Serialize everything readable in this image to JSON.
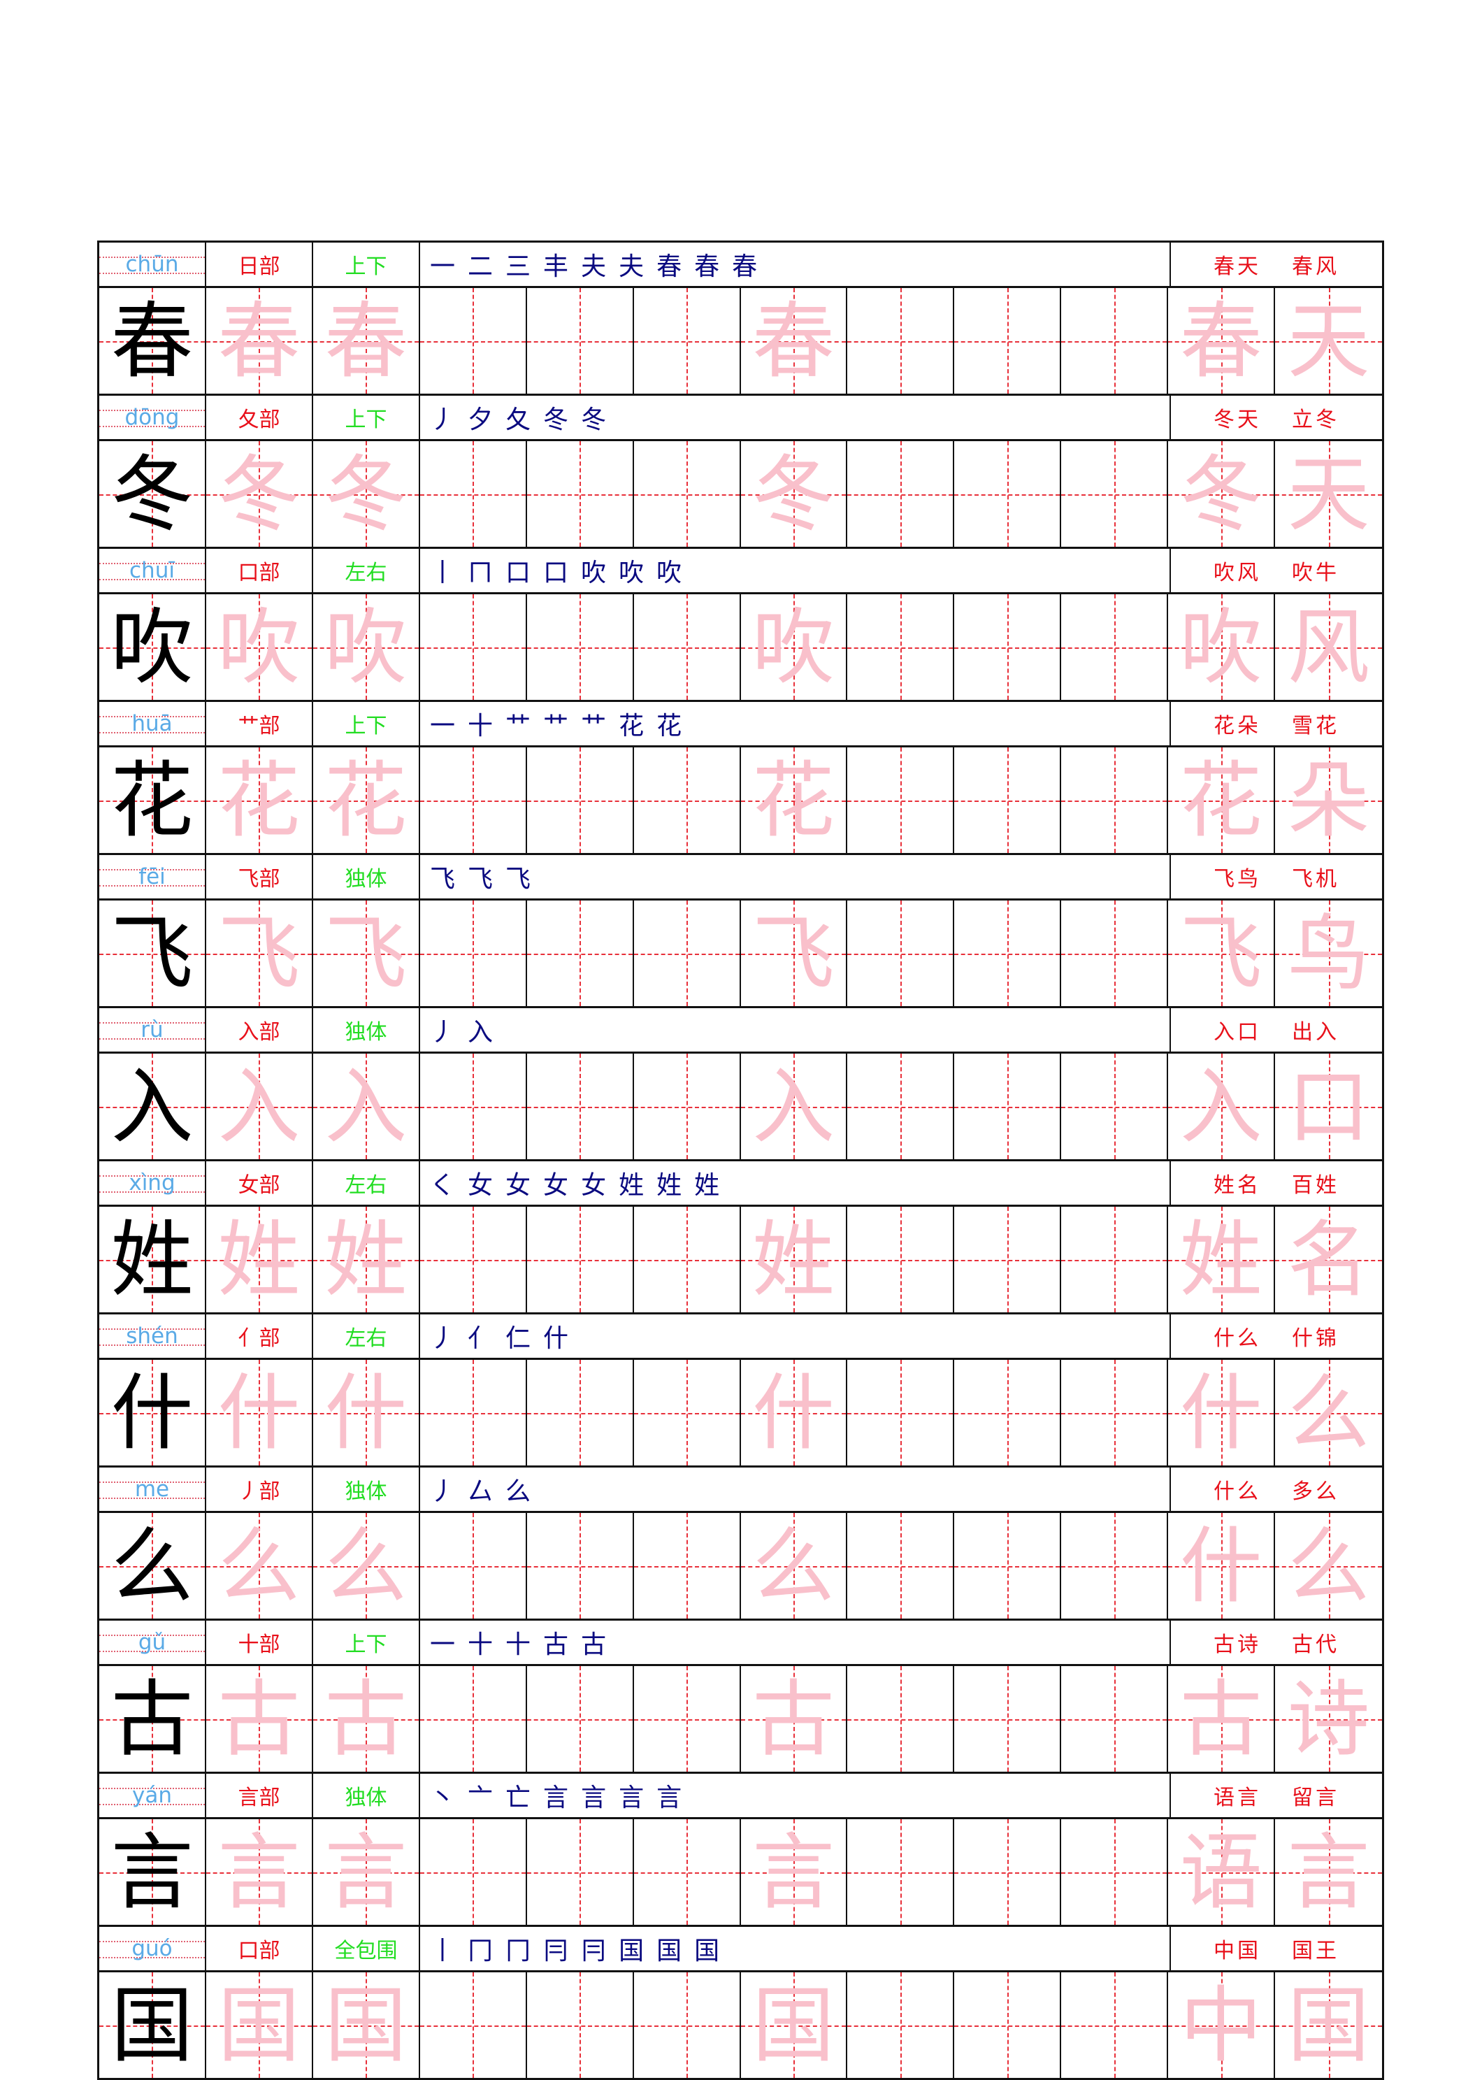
{
  "colors": {
    "pinyin": "#5aaae6",
    "radical": "#e8101a",
    "structure": "#22dd22",
    "strokes": "#0a0a80",
    "trace": "#f9c0cb",
    "grid": "#e8303a"
  },
  "rows": [
    {
      "pinyin": "chūn",
      "char": "春",
      "radical": "日部",
      "structure": "上下",
      "strokes": [
        "一",
        "二",
        "三",
        "丰",
        "夫",
        "夫",
        "春",
        "春",
        "春"
      ],
      "words": [
        "春天",
        "春风"
      ],
      "trace_word": [
        "春",
        "天"
      ]
    },
    {
      "pinyin": "dōng",
      "char": "冬",
      "radical": "夂部",
      "structure": "上下",
      "strokes": [
        "丿",
        "夕",
        "夂",
        "冬",
        "冬"
      ],
      "words": [
        "冬天",
        "立冬"
      ],
      "trace_word": [
        "冬",
        "天"
      ]
    },
    {
      "pinyin": "chuī",
      "char": "吹",
      "radical": "口部",
      "structure": "左右",
      "strokes": [
        "丨",
        "ㄇ",
        "口",
        "口",
        "吹",
        "吹",
        "吹"
      ],
      "words": [
        "吹风",
        "吹牛"
      ],
      "trace_word": [
        "吹",
        "风"
      ]
    },
    {
      "pinyin": "huā",
      "char": "花",
      "radical": "艹部",
      "structure": "上下",
      "strokes": [
        "一",
        "十",
        "艹",
        "艹",
        "艹",
        "花",
        "花"
      ],
      "words": [
        "花朵",
        "雪花"
      ],
      "trace_word": [
        "花",
        "朵"
      ]
    },
    {
      "pinyin": "fēi",
      "char": "飞",
      "radical": "飞部",
      "structure": "独体",
      "strokes": [
        "飞",
        "飞",
        "飞"
      ],
      "words": [
        "飞鸟",
        "飞机"
      ],
      "trace_word": [
        "飞",
        "鸟"
      ]
    },
    {
      "pinyin": "rù",
      "char": "入",
      "radical": "入部",
      "structure": "独体",
      "strokes": [
        "丿",
        "入"
      ],
      "words": [
        "入口",
        "出入"
      ],
      "trace_word": [
        "入",
        "口"
      ]
    },
    {
      "pinyin": "xìng",
      "char": "姓",
      "radical": "女部",
      "structure": "左右",
      "strokes": [
        "く",
        "女",
        "女",
        "女",
        "女",
        "姓",
        "姓",
        "姓"
      ],
      "words": [
        "姓名",
        "百姓"
      ],
      "trace_word": [
        "姓",
        "名"
      ]
    },
    {
      "pinyin": "shén",
      "char": "什",
      "radical": "亻部",
      "structure": "左右",
      "strokes": [
        "丿",
        "亻",
        "仁",
        "什"
      ],
      "words": [
        "什么",
        "什锦"
      ],
      "trace_word": [
        "什",
        "么"
      ]
    },
    {
      "pinyin": "me",
      "char": "么",
      "radical": "丿部",
      "structure": "独体",
      "strokes": [
        "丿",
        "厶",
        "么"
      ],
      "words": [
        "什么",
        "多么"
      ],
      "trace_word": [
        "什",
        "么"
      ]
    },
    {
      "pinyin": "gǔ",
      "char": "古",
      "radical": "十部",
      "structure": "上下",
      "strokes": [
        "一",
        "十",
        "十",
        "古",
        "古"
      ],
      "words": [
        "古诗",
        "古代"
      ],
      "trace_word": [
        "古",
        "诗"
      ]
    },
    {
      "pinyin": "yán",
      "char": "言",
      "radical": "言部",
      "structure": "独体",
      "strokes": [
        "丶",
        "亠",
        "亡",
        "言",
        "言",
        "言",
        "言"
      ],
      "words": [
        "语言",
        "留言"
      ],
      "trace_word": [
        "语",
        "言"
      ]
    },
    {
      "pinyin": "guó",
      "char": "国",
      "radical": "口部",
      "structure": "全包围",
      "strokes": [
        "丨",
        "冂",
        "冂",
        "冃",
        "冃",
        "国",
        "国",
        "国"
      ],
      "words": [
        "中国",
        "国王"
      ],
      "trace_word": [
        "中",
        "国"
      ]
    }
  ]
}
